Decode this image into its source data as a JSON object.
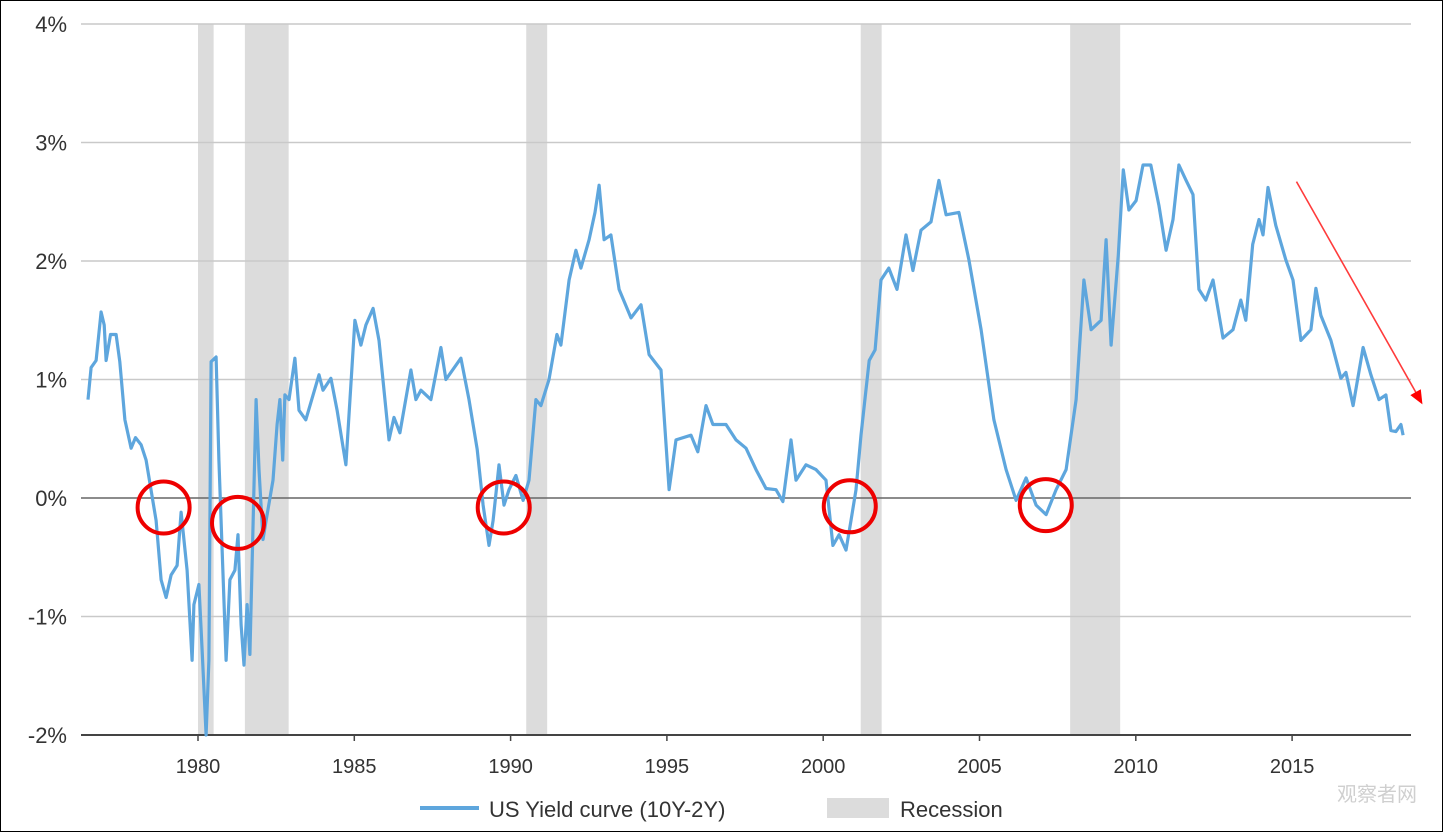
{
  "chart_data": {
    "type": "line",
    "title": "",
    "xlabel": "",
    "ylabel": "",
    "xlim": [
      1976.25,
      2018.8
    ],
    "ylim": [
      -2,
      4
    ],
    "grid": true,
    "legend_position": "bottom-center",
    "y_ticks": [
      {
        "value": -2,
        "label": "-2%"
      },
      {
        "value": -1,
        "label": "-1%"
      },
      {
        "value": 0,
        "label": "0%"
      },
      {
        "value": 1,
        "label": "1%"
      },
      {
        "value": 2,
        "label": "2%"
      },
      {
        "value": 3,
        "label": "3%"
      },
      {
        "value": 4,
        "label": "4%"
      }
    ],
    "x_ticks": [
      {
        "value": 1980,
        "label": "1980"
      },
      {
        "value": 1985,
        "label": "1985"
      },
      {
        "value": 1990,
        "label": "1990"
      },
      {
        "value": 1995,
        "label": "1995"
      },
      {
        "value": 2000,
        "label": "2000"
      },
      {
        "value": 2005,
        "label": "2005"
      },
      {
        "value": 2010,
        "label": "2010"
      },
      {
        "value": 2015,
        "label": "2015"
      }
    ],
    "series": [
      {
        "name": "US Yield curve (10Y-2Y)",
        "color": "#5ea6dd",
        "points": [
          [
            1976.48,
            0.83
          ],
          [
            1976.58,
            1.1
          ],
          [
            1976.74,
            1.16
          ],
          [
            1976.9,
            1.57
          ],
          [
            1977.0,
            1.46
          ],
          [
            1977.06,
            1.16
          ],
          [
            1977.2,
            1.38
          ],
          [
            1977.38,
            1.38
          ],
          [
            1977.5,
            1.15
          ],
          [
            1977.66,
            0.66
          ],
          [
            1977.86,
            0.42
          ],
          [
            1978.0,
            0.51
          ],
          [
            1978.18,
            0.45
          ],
          [
            1978.34,
            0.32
          ],
          [
            1978.66,
            -0.19
          ],
          [
            1978.82,
            -0.69
          ],
          [
            1978.98,
            -0.84
          ],
          [
            1979.14,
            -0.65
          ],
          [
            1979.33,
            -0.57
          ],
          [
            1979.46,
            -0.12
          ],
          [
            1979.65,
            -0.61
          ],
          [
            1979.81,
            -1.37
          ],
          [
            1979.87,
            -0.9
          ],
          [
            1980.03,
            -0.73
          ],
          [
            1980.13,
            -1.28
          ],
          [
            1980.26,
            -2.0
          ],
          [
            1980.35,
            -1.37
          ],
          [
            1980.42,
            1.15
          ],
          [
            1980.58,
            1.19
          ],
          [
            1980.67,
            0.32
          ],
          [
            1980.9,
            -1.37
          ],
          [
            1981.02,
            -0.69
          ],
          [
            1981.18,
            -0.61
          ],
          [
            1981.28,
            -0.31
          ],
          [
            1981.38,
            -1.07
          ],
          [
            1981.47,
            -1.41
          ],
          [
            1981.57,
            -0.9
          ],
          [
            1981.66,
            -1.32
          ],
          [
            1981.86,
            0.83
          ],
          [
            1981.95,
            0.24
          ],
          [
            1982.08,
            -0.35
          ],
          [
            1982.18,
            -0.19
          ],
          [
            1982.4,
            0.15
          ],
          [
            1982.53,
            0.62
          ],
          [
            1982.62,
            0.83
          ],
          [
            1982.71,
            0.32
          ],
          [
            1982.78,
            0.87
          ],
          [
            1982.91,
            0.83
          ],
          [
            1983.1,
            1.18
          ],
          [
            1983.23,
            0.74
          ],
          [
            1983.45,
            0.66
          ],
          [
            1983.87,
            1.04
          ],
          [
            1984.0,
            0.91
          ],
          [
            1984.25,
            1.01
          ],
          [
            1984.45,
            0.74
          ],
          [
            1984.73,
            0.28
          ],
          [
            1985.02,
            1.5
          ],
          [
            1985.21,
            1.29
          ],
          [
            1985.37,
            1.46
          ],
          [
            1985.6,
            1.6
          ],
          [
            1985.79,
            1.33
          ],
          [
            1986.11,
            0.49
          ],
          [
            1986.27,
            0.68
          ],
          [
            1986.46,
            0.55
          ],
          [
            1986.81,
            1.08
          ],
          [
            1986.97,
            0.83
          ],
          [
            1987.13,
            0.91
          ],
          [
            1987.45,
            0.83
          ],
          [
            1987.77,
            1.27
          ],
          [
            1987.93,
            1.0
          ],
          [
            1988.41,
            1.18
          ],
          [
            1988.67,
            0.83
          ],
          [
            1988.93,
            0.41
          ],
          [
            1989.12,
            -0.06
          ],
          [
            1989.31,
            -0.4
          ],
          [
            1989.44,
            -0.19
          ],
          [
            1989.63,
            0.28
          ],
          [
            1989.79,
            -0.06
          ],
          [
            1989.95,
            0.07
          ],
          [
            1990.17,
            0.19
          ],
          [
            1990.4,
            -0.02
          ],
          [
            1990.59,
            0.15
          ],
          [
            1990.81,
            0.83
          ],
          [
            1990.97,
            0.78
          ],
          [
            1991.23,
            1.0
          ],
          [
            1991.48,
            1.38
          ],
          [
            1991.61,
            1.29
          ],
          [
            1991.87,
            1.84
          ],
          [
            1992.09,
            2.09
          ],
          [
            1992.25,
            1.94
          ],
          [
            1992.51,
            2.18
          ],
          [
            1992.7,
            2.41
          ],
          [
            1992.83,
            2.64
          ],
          [
            1992.99,
            2.18
          ],
          [
            1993.21,
            2.22
          ],
          [
            1993.47,
            1.76
          ],
          [
            1993.85,
            1.52
          ],
          [
            1994.17,
            1.63
          ],
          [
            1994.43,
            1.21
          ],
          [
            1994.81,
            1.08
          ],
          [
            1995.07,
            0.07
          ],
          [
            1995.29,
            0.49
          ],
          [
            1995.77,
            0.53
          ],
          [
            1995.99,
            0.39
          ],
          [
            1996.25,
            0.78
          ],
          [
            1996.47,
            0.62
          ],
          [
            1996.89,
            0.62
          ],
          [
            1997.21,
            0.49
          ],
          [
            1997.53,
            0.42
          ],
          [
            1997.85,
            0.24
          ],
          [
            1998.17,
            0.08
          ],
          [
            1998.49,
            0.07
          ],
          [
            1998.71,
            -0.03
          ],
          [
            1998.97,
            0.49
          ],
          [
            1999.13,
            0.15
          ],
          [
            1999.45,
            0.28
          ],
          [
            1999.77,
            0.24
          ],
          [
            2000.09,
            0.15
          ],
          [
            2000.31,
            -0.4
          ],
          [
            2000.51,
            -0.31
          ],
          [
            2000.73,
            -0.44
          ],
          [
            2000.89,
            -0.19
          ],
          [
            2001.05,
            0.07
          ],
          [
            2001.21,
            0.53
          ],
          [
            2001.47,
            1.16
          ],
          [
            2001.66,
            1.25
          ],
          [
            2001.85,
            1.84
          ],
          [
            2002.1,
            1.94
          ],
          [
            2002.36,
            1.76
          ],
          [
            2002.65,
            2.22
          ],
          [
            2002.87,
            1.92
          ],
          [
            2003.13,
            2.26
          ],
          [
            2003.45,
            2.33
          ],
          [
            2003.7,
            2.68
          ],
          [
            2003.93,
            2.39
          ],
          [
            2004.34,
            2.41
          ],
          [
            2004.66,
            2.01
          ],
          [
            2005.05,
            1.42
          ],
          [
            2005.46,
            0.66
          ],
          [
            2005.85,
            0.24
          ],
          [
            2006.17,
            -0.02
          ],
          [
            2006.49,
            0.17
          ],
          [
            2006.81,
            -0.06
          ],
          [
            2007.13,
            -0.14
          ],
          [
            2007.45,
            0.07
          ],
          [
            2007.77,
            0.24
          ],
          [
            2008.09,
            0.83
          ],
          [
            2008.34,
            1.84
          ],
          [
            2008.57,
            1.42
          ],
          [
            2008.89,
            1.5
          ],
          [
            2009.05,
            2.18
          ],
          [
            2009.21,
            1.29
          ],
          [
            2009.44,
            2.05
          ],
          [
            2009.6,
            2.77
          ],
          [
            2009.78,
            2.43
          ],
          [
            2010.01,
            2.51
          ],
          [
            2010.23,
            2.81
          ],
          [
            2010.48,
            2.81
          ],
          [
            2010.74,
            2.47
          ],
          [
            2010.97,
            2.09
          ],
          [
            2011.19,
            2.35
          ],
          [
            2011.38,
            2.81
          ],
          [
            2011.61,
            2.68
          ],
          [
            2011.83,
            2.56
          ],
          [
            2012.02,
            1.76
          ],
          [
            2012.24,
            1.67
          ],
          [
            2012.47,
            1.84
          ],
          [
            2012.79,
            1.35
          ],
          [
            2013.11,
            1.42
          ],
          [
            2013.36,
            1.67
          ],
          [
            2013.52,
            1.5
          ],
          [
            2013.74,
            2.14
          ],
          [
            2013.94,
            2.35
          ],
          [
            2014.07,
            2.22
          ],
          [
            2014.23,
            2.62
          ],
          [
            2014.48,
            2.3
          ],
          [
            2014.8,
            2.01
          ],
          [
            2015.03,
            1.84
          ],
          [
            2015.28,
            1.33
          ],
          [
            2015.6,
            1.42
          ],
          [
            2015.76,
            1.77
          ],
          [
            2015.92,
            1.54
          ],
          [
            2016.24,
            1.33
          ],
          [
            2016.56,
            1.01
          ],
          [
            2016.72,
            1.06
          ],
          [
            2016.95,
            0.78
          ],
          [
            2017.27,
            1.27
          ],
          [
            2017.52,
            1.04
          ],
          [
            2017.78,
            0.83
          ],
          [
            2018.0,
            0.87
          ],
          [
            2018.16,
            0.57
          ],
          [
            2018.32,
            0.56
          ],
          [
            2018.48,
            0.62
          ],
          [
            2018.55,
            0.53
          ]
        ]
      }
    ],
    "recessions": {
      "name": "Recession",
      "color": "#dcdcdc",
      "periods": [
        [
          1980.0,
          1980.5
        ],
        [
          1981.5,
          1982.9
        ],
        [
          1990.5,
          1991.17
        ],
        [
          2001.2,
          2001.87
        ],
        [
          2007.9,
          2009.5
        ]
      ]
    },
    "annotations": {
      "inversion_circles": [
        {
          "x": 1978.9,
          "y": -0.08
        },
        {
          "x": 1981.28,
          "y": -0.21
        },
        {
          "x": 1989.78,
          "y": -0.08
        },
        {
          "x": 2000.85,
          "y": -0.07
        },
        {
          "x": 2007.12,
          "y": -0.06
        }
      ],
      "circle_color": "#ee0000",
      "trend_arrow": {
        "from": [
          2015.14,
          2.67
        ],
        "to": [
          2019.17,
          0.79
        ],
        "color": "#ff3b3b"
      }
    },
    "legend": [
      {
        "label": "US Yield curve (10Y-2Y)",
        "kind": "line",
        "color": "#5ea6dd"
      },
      {
        "label": "Recession",
        "kind": "box",
        "color": "#dcdcdc"
      }
    ],
    "watermark": "观察者网"
  }
}
